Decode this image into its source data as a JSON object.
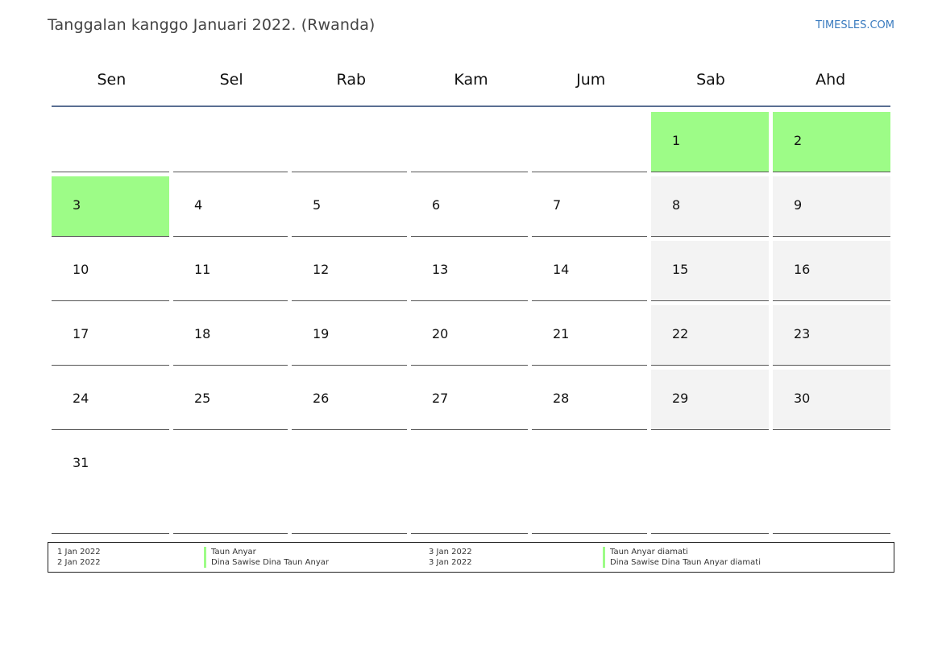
{
  "header": {
    "title": "Tanggalan kanggo Januari 2022. (Rwanda)",
    "brand": "TIMESLES.COM"
  },
  "colors": {
    "holiday": "#9dfc87",
    "weekend": "#f3f3f3",
    "header_rule": "#5a6f92",
    "brand": "#3a7bbf"
  },
  "weekdays": [
    "Sen",
    "Sel",
    "Rab",
    "Kam",
    "Jum",
    "Sab",
    "Ahd"
  ],
  "weeks": [
    [
      "",
      "",
      "",
      "",
      "",
      "1",
      "2"
    ],
    [
      "3",
      "4",
      "5",
      "6",
      "7",
      "8",
      "9"
    ],
    [
      "10",
      "11",
      "12",
      "13",
      "14",
      "15",
      "16"
    ],
    [
      "17",
      "18",
      "19",
      "20",
      "21",
      "22",
      "23"
    ],
    [
      "24",
      "25",
      "26",
      "27",
      "28",
      "29",
      "30"
    ],
    [
      "31",
      "",
      "",
      "",
      "",
      "",
      ""
    ]
  ],
  "holiday_days": [
    "1",
    "2",
    "3"
  ],
  "legend": [
    {
      "date": "1 Jan 2022",
      "name": "Taun Anyar"
    },
    {
      "date": "2 Jan 2022",
      "name": "Dina Sawise Dina Taun Anyar"
    },
    {
      "date": "3 Jan 2022",
      "name": "Taun Anyar diamati"
    },
    {
      "date": "3 Jan 2022",
      "name": "Dina Sawise Dina Taun Anyar diamati"
    }
  ]
}
